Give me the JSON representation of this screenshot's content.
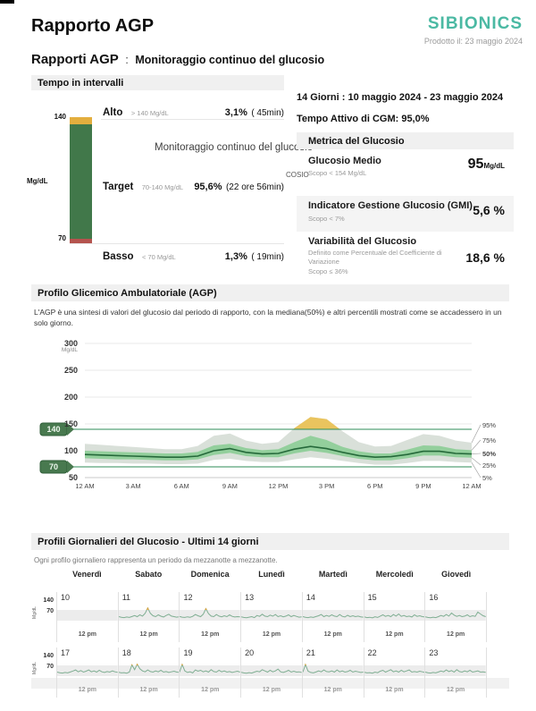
{
  "header": {
    "title": "Rapporto AGP",
    "brand": "SIBIONICS",
    "produced": "Prodotto il: 23 maggio 2024"
  },
  "subheader": {
    "label": "Rapporti AGP",
    "colon": ":",
    "value": "Monitoraggio continuo del glucosio"
  },
  "watermark": {
    "text": "Monitoraggio continuo del glucosio",
    "fragment": "COSIO"
  },
  "colors": {
    "brand_teal": "#4BB9A3",
    "alto_orange": "#E3AE3E",
    "target_green": "#41784A",
    "basso_red": "#B5534E",
    "agp_outer_band": "#CFD8CF",
    "agp_inner_band": "#8BCD95",
    "agp_median": "#25693A",
    "agp_yellow": "#EAC45E",
    "target_line": "#2E8B57",
    "daily_line": "#7FAE92",
    "daily_peak": "#D9A23C",
    "daily_band": "#ECECEC"
  },
  "time_in_range": {
    "section_title": "Tempo in intervalli",
    "axis_top": "140",
    "axis_bottom": "70",
    "axis_unit": "Mg/dL",
    "rows": [
      {
        "label": "Alto",
        "range": "> 140 Mg/dL",
        "value": "3,1%",
        "duration": "( 45min)"
      },
      {
        "label": "Target",
        "range": "70-140 Mg/dL",
        "value": "95,6%",
        "duration": "(22 ore 56min)"
      },
      {
        "label": "Basso",
        "range": "< 70 Mg/dL",
        "value": "1,3%",
        "duration": "( 19min)"
      }
    ]
  },
  "summary": {
    "period": "14 Giorni : 10 maggio 2024 - 23 maggio 2024",
    "cgm_active": "Tempo Attivo di CGM: 95,0%",
    "metrics_title": "Metrica del Glucosio",
    "metrics": [
      {
        "name": "Glucosio Medio",
        "goal": "Scopo < 154 Mg/dL",
        "value": "95",
        "unit": "Mg/dL"
      },
      {
        "name": "Indicatore Gestione Glucosio (GMI)",
        "goal": "Scopo < 7%",
        "value": "5,6 %"
      },
      {
        "name": "Variabilità del Glucosio",
        "goal": "Definito come Percentuale del Coefficiente di Variazione",
        "goal2": "Scopo ≤ 36%",
        "value": "18,6 %"
      }
    ]
  },
  "agp": {
    "section_title": "Profilo Glicemico Ambulatoriale (AGP)",
    "description": "L'AGP è una sintesi di valori del glucosio dal periodo di rapporto, con la mediana(50%) e altri percentili mostrati come se accadessero in un solo giorno."
  },
  "daily": {
    "section_title": "Profili Giornalieri del Glucosio - Ultimi 14 giorni",
    "description": "Ogni profilo giornaliero rappresenta un periodo da mezzanotte a mezzanotte.",
    "weekdays": [
      "Venerdì",
      "Sabato",
      "Domenica",
      "Lunedì",
      "Martedì",
      "Mercoledì",
      "Giovedì"
    ],
    "axis": {
      "top": "140",
      "bottom": "70",
      "unit": "Mg/dL",
      "noon": "12 pm"
    }
  },
  "chart_data": [
    {
      "id": "time-in-range-bar",
      "type": "bar",
      "title": "Tempo in intervalli",
      "categories": [
        "Alto",
        "Target",
        "Basso"
      ],
      "values": [
        3.1,
        95.6,
        1.3
      ],
      "durations": [
        "45min",
        "22 ore 56min",
        "19min"
      ],
      "thresholds": {
        "high": 140,
        "low": 70
      },
      "unit": "% of time",
      "colors": [
        "#E3AE3E",
        "#41784A",
        "#B5534E"
      ]
    },
    {
      "id": "agp-percentiles",
      "type": "area",
      "title": "Profilo Glicemico Ambulatoriale (AGP)",
      "ylabel": "Mg/dL",
      "ylim": [
        50,
        300
      ],
      "yticks": [
        300,
        250,
        200,
        150,
        100,
        50
      ],
      "xticks_hours": [
        0,
        3,
        6,
        9,
        12,
        15,
        18,
        21,
        24
      ],
      "xtick_labels": [
        "12 AM",
        "3 AM",
        "6 AM",
        "9 AM",
        "12 PM",
        "3 PM",
        "6 PM",
        "9 PM",
        "12 AM"
      ],
      "target_low": 70,
      "target_high": 140,
      "legend": [
        "95%",
        "75%",
        "50%",
        "25%",
        "5%"
      ],
      "hours": [
        0,
        1,
        2,
        3,
        4,
        5,
        6,
        7,
        8,
        9,
        10,
        11,
        12,
        13,
        14,
        15,
        16,
        17,
        18,
        19,
        20,
        21,
        22,
        23,
        24
      ],
      "p5": [
        78,
        77,
        77,
        76,
        76,
        75,
        75,
        76,
        83,
        85,
        81,
        79,
        79,
        84,
        88,
        85,
        81,
        77,
        74,
        74,
        77,
        81,
        81,
        79,
        78
      ],
      "p25": [
        86,
        85,
        84,
        84,
        83,
        82,
        82,
        84,
        92,
        96,
        90,
        88,
        88,
        95,
        100,
        96,
        90,
        85,
        82,
        82,
        86,
        91,
        91,
        88,
        87
      ],
      "p50": [
        93,
        92,
        91,
        90,
        89,
        88,
        88,
        90,
        100,
        104,
        97,
        94,
        95,
        103,
        108,
        104,
        97,
        91,
        88,
        89,
        93,
        99,
        99,
        95,
        94
      ],
      "p75": [
        100,
        99,
        98,
        97,
        96,
        95,
        95,
        98,
        110,
        113,
        105,
        101,
        103,
        116,
        128,
        120,
        107,
        99,
        95,
        95,
        102,
        110,
        109,
        103,
        101
      ],
      "p95": [
        113,
        111,
        109,
        107,
        105,
        103,
        103,
        109,
        128,
        132,
        119,
        113,
        116,
        142,
        163,
        159,
        136,
        116,
        108,
        109,
        120,
        131,
        128,
        119,
        115
      ]
    },
    {
      "id": "daily-profiles",
      "type": "line",
      "title": "Profili Giornalieri del Glucosio - Ultimi 14 giorni",
      "ylim": [
        40,
        180
      ],
      "threshold_high": 140,
      "threshold_low": 70,
      "days": [
        {
          "date": 10,
          "values": []
        },
        {
          "date": 11,
          "values": [
            96,
            92,
            90,
            94,
            91,
            97,
            103,
            96,
            108,
            100,
            118,
            152,
            118,
            102,
            96,
            108,
            99,
            94,
            104,
            112,
            100,
            96,
            93,
            95
          ]
        },
        {
          "date": 12,
          "values": [
            97,
            93,
            91,
            95,
            92,
            98,
            110,
            102,
            96,
            112,
            148,
            116,
            100,
            96,
            110,
            100,
            95,
            102,
            96,
            108,
            98,
            94,
            96,
            95
          ]
        },
        {
          "date": 13,
          "values": [
            95,
            91,
            89,
            93,
            96,
            90,
            104,
            98,
            112,
            100,
            96,
            106,
            99,
            110,
            96,
            102,
            95,
            100,
            108,
            96,
            104,
            98,
            93,
            95
          ]
        },
        {
          "date": 14,
          "values": [
            96,
            92,
            90,
            94,
            91,
            97,
            102,
            110,
            96,
            104,
            98,
            108,
            100,
            96,
            110,
            98,
            94,
            105,
            96,
            102,
            96,
            100,
            95,
            93
          ]
        },
        {
          "date": 15,
          "values": [
            94,
            90,
            92,
            88,
            95,
            91,
            100,
            108,
            98,
            104,
            96,
            110,
            100,
            114,
            98,
            104,
            96,
            100,
            94,
            108,
            98,
            102,
            96,
            94
          ]
        },
        {
          "date": 16,
          "values": [
            95,
            91,
            89,
            93,
            90,
            96,
            104,
            98,
            110,
            100,
            120,
            106,
            98,
            104,
            96,
            100,
            108,
            96,
            102,
            98,
            126,
            114,
            102,
            96
          ]
        },
        {
          "date": 17,
          "values": [
            96,
            92,
            90,
            94,
            91,
            97,
            103,
            110,
            98,
            106,
            96,
            102,
            110,
            98,
            104,
            96,
            108,
            98,
            94,
            100,
            96,
            104,
            98,
            95
          ]
        },
        {
          "date": 18,
          "values": [
            95,
            91,
            93,
            89,
            96,
            143,
            112,
            147,
            118,
            104,
            98,
            110,
            100,
            96,
            104,
            98,
            108,
            96,
            100,
            94,
            98,
            102,
            96,
            95
          ]
        },
        {
          "date": 19,
          "values": [
            96,
            146,
            104,
            94,
            98,
            91,
            110,
            102,
            108,
            98,
            104,
            96,
            112,
            100,
            96,
            108,
            98,
            104,
            96,
            100,
            94,
            98,
            102,
            96
          ]
        },
        {
          "date": 20,
          "values": [
            95,
            91,
            89,
            93,
            90,
            96,
            102,
            98,
            112,
            104,
            96,
            108,
            98,
            104,
            116,
            98,
            94,
            100,
            108,
            96,
            102,
            96,
            98,
            94
          ]
        },
        {
          "date": 21,
          "values": [
            96,
            145,
            102,
            94,
            91,
            97,
            104,
            98,
            110,
            100,
            98,
            104,
            96,
            110,
            98,
            104,
            96,
            100,
            108,
            96,
            102,
            98,
            94,
            96
          ]
        },
        {
          "date": 22,
          "values": [
            95,
            91,
            93,
            89,
            96,
            92,
            102,
            108,
            96,
            104,
            112,
            98,
            104,
            96,
            108,
            98,
            104,
            110,
            96,
            100,
            96,
            102,
            98,
            94
          ]
        },
        {
          "date": 23,
          "values": [
            96,
            92,
            90,
            94,
            91,
            97,
            103,
            98,
            110,
            100,
            106,
            96,
            112,
            100,
            96,
            104,
            98,
            108,
            96,
            100,
            104,
            96,
            98,
            95
          ]
        }
      ]
    }
  ]
}
